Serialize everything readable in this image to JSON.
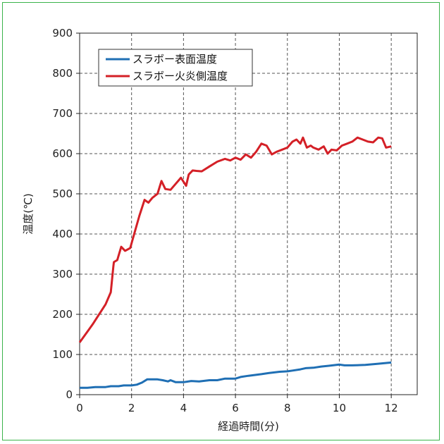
{
  "chart_data": {
    "type": "line",
    "xlabel": "経過時間(分)",
    "ylabel": "温度(℃)",
    "xlim": [
      0,
      13
    ],
    "ylim": [
      0,
      900
    ],
    "x_ticks": [
      0,
      2,
      4,
      6,
      8,
      10,
      12
    ],
    "y_ticks": [
      0,
      100,
      200,
      300,
      400,
      500,
      600,
      700,
      800,
      900
    ],
    "grid": true,
    "legend_position": "top-left",
    "series": [
      {
        "name": "スラボー表面温度",
        "color": "#1f6fb4",
        "x": [
          0,
          0.3,
          0.6,
          1.0,
          1.2,
          1.5,
          1.7,
          2.0,
          2.2,
          2.4,
          2.6,
          2.8,
          3.0,
          3.2,
          3.4,
          3.5,
          3.7,
          4.0,
          4.3,
          4.6,
          5.0,
          5.3,
          5.6,
          6.0,
          6.2,
          6.5,
          7.0,
          7.3,
          7.7,
          8.0,
          8.2,
          8.5,
          8.7,
          9.0,
          9.3,
          9.6,
          10.0,
          10.2,
          10.5,
          11.0,
          11.5,
          12.0
        ],
        "y": [
          17,
          17,
          19,
          19,
          21,
          21,
          23,
          23,
          25,
          30,
          38,
          38,
          38,
          36,
          33,
          36,
          31,
          31,
          34,
          33,
          36,
          36,
          40,
          40,
          44,
          47,
          51,
          54,
          57,
          58,
          60,
          63,
          66,
          67,
          70,
          72,
          75,
          73,
          73,
          74,
          77,
          80
        ]
      },
      {
        "name": "スラボー火炎側温度",
        "color": "#d42027",
        "x": [
          0,
          0.5,
          1.0,
          1.2,
          1.3,
          1.32,
          1.45,
          1.6,
          1.75,
          1.95,
          2.1,
          2.3,
          2.5,
          2.65,
          2.8,
          3.0,
          3.15,
          3.3,
          3.5,
          3.7,
          3.9,
          4.1,
          4.2,
          4.35,
          4.5,
          4.7,
          5.0,
          5.3,
          5.6,
          5.8,
          6.0,
          6.2,
          6.4,
          6.6,
          6.8,
          7.0,
          7.2,
          7.4,
          7.6,
          7.8,
          8.0,
          8.2,
          8.35,
          8.5,
          8.6,
          8.75,
          8.9,
          9.0,
          9.2,
          9.4,
          9.55,
          9.7,
          9.9,
          10.1,
          10.3,
          10.5,
          10.7,
          10.9,
          11.1,
          11.3,
          11.5,
          11.65,
          11.8,
          12.0
        ],
        "y": [
          130,
          175,
          225,
          255,
          320,
          330,
          335,
          368,
          358,
          365,
          400,
          445,
          485,
          478,
          490,
          500,
          532,
          512,
          510,
          525,
          540,
          520,
          548,
          558,
          557,
          556,
          568,
          580,
          587,
          583,
          590,
          585,
          598,
          590,
          605,
          625,
          620,
          598,
          605,
          610,
          615,
          630,
          635,
          625,
          640,
          615,
          620,
          615,
          610,
          618,
          600,
          610,
          608,
          620,
          625,
          630,
          640,
          635,
          630,
          628,
          640,
          638,
          615,
          618
        ]
      }
    ]
  }
}
